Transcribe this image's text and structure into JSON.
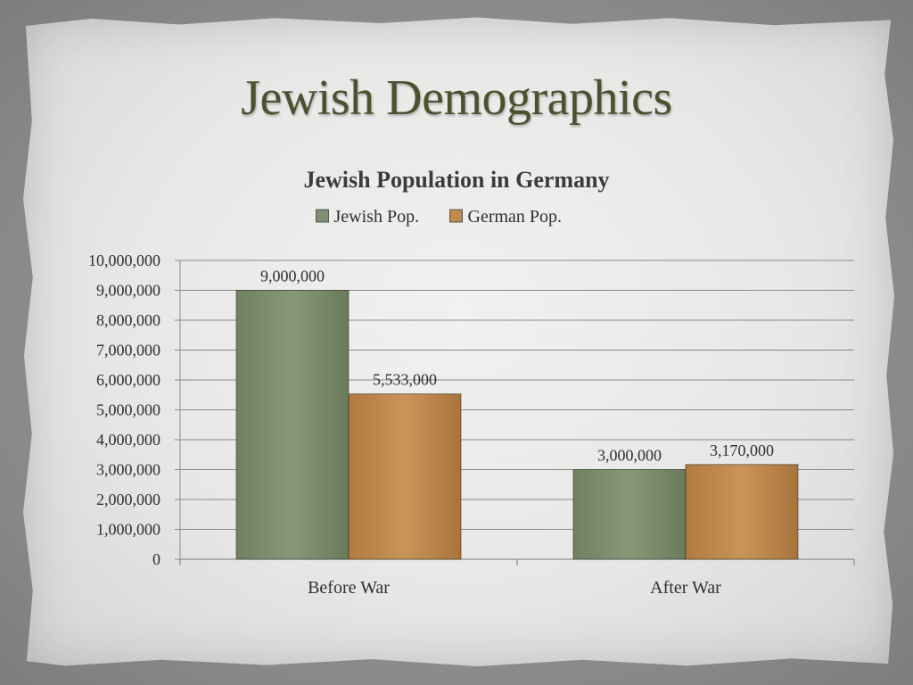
{
  "slide": {
    "title": "Jewish Demographics"
  },
  "chart_data": {
    "type": "bar",
    "title": "Jewish Population in Germany",
    "categories": [
      "Before War",
      "After War"
    ],
    "series": [
      {
        "name": "Jewish Pop.",
        "values": [
          9000000,
          3000000
        ],
        "labels": [
          "9,000,000",
          "3,000,000"
        ],
        "color": "#7d8f6e"
      },
      {
        "name": "German Pop.",
        "values": [
          5533000,
          3170000
        ],
        "labels": [
          "5,533,000",
          "3,170,000"
        ],
        "color": "#c08a4f"
      }
    ],
    "ylim": [
      0,
      10000000
    ],
    "yticks": [
      0,
      1000000,
      2000000,
      3000000,
      4000000,
      5000000,
      6000000,
      7000000,
      8000000,
      9000000,
      10000000
    ],
    "ytick_labels": [
      "0",
      "1,000,000",
      "2,000,000",
      "3,000,000",
      "4,000,000",
      "5,000,000",
      "6,000,000",
      "7,000,000",
      "8,000,000",
      "9,000,000",
      "10,000,000"
    ],
    "grid": true,
    "legend": "top-center"
  }
}
